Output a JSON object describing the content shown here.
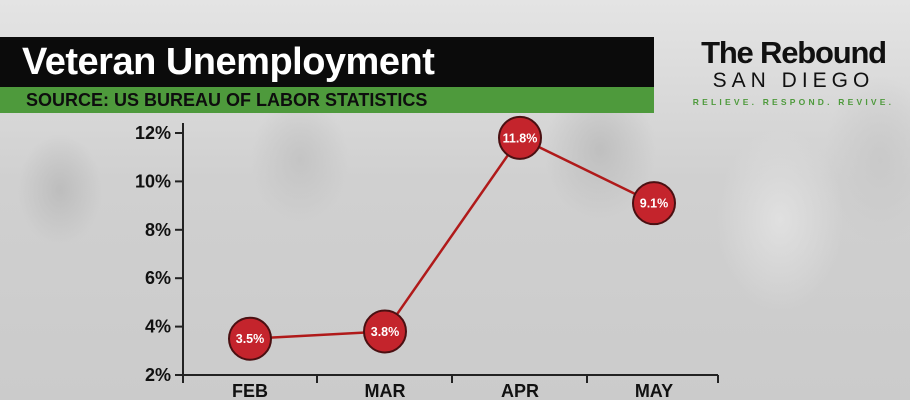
{
  "header": {
    "title": "Veteran Unemployment",
    "source": "SOURCE: US BUREAU OF LABOR STATISTICS"
  },
  "logo": {
    "main": "The Rebound",
    "sub": "SAN DIEGO",
    "tagline": "RELIEVE. RESPOND. REVIVE."
  },
  "colors": {
    "title_bar": "#0b0b0b",
    "source_bar": "#4e9a3c",
    "line": "#b01a1a",
    "marker": "#c4242c"
  },
  "chart_data": {
    "type": "line",
    "categories": [
      "FEB",
      "MAR",
      "APR",
      "MAY"
    ],
    "values": [
      3.5,
      3.8,
      11.8,
      9.1
    ],
    "data_labels": [
      "3.5%",
      "3.8%",
      "11.8%",
      "9.1%"
    ],
    "ylim": [
      2,
      12
    ],
    "yticks": [
      2,
      4,
      6,
      8,
      10,
      12
    ],
    "ytick_labels": [
      "2%",
      "4%",
      "6%",
      "8%",
      "10%",
      "12%"
    ],
    "grid": false
  }
}
